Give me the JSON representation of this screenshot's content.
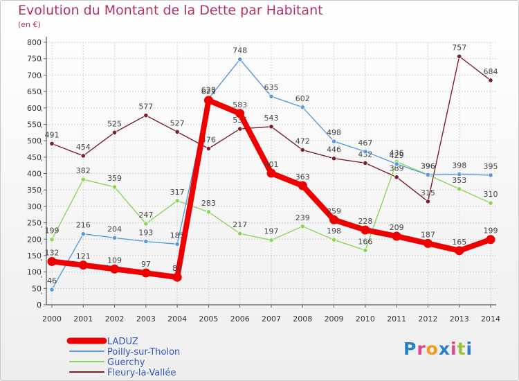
{
  "title": "Evolution du Montant de la Dette par Habitant",
  "unit": "(en €)",
  "logo": {
    "text": "Proxiti",
    "letter_colors": [
      "#2a7fc8",
      "#e0468c",
      "#f39a1e",
      "#2a7fc8",
      "#e0468c",
      "#9bc33c",
      "#2a7fc8"
    ]
  },
  "chart_data": {
    "type": "line",
    "x": [
      "2000",
      "2001",
      "2002",
      "2003",
      "2004",
      "2005",
      "2006",
      "2007",
      "2008",
      "2009",
      "2010",
      "2011",
      "2012",
      "2013",
      "2014"
    ],
    "ylim": [
      0,
      800
    ],
    "yticks": [
      0,
      50,
      100,
      150,
      200,
      250,
      300,
      350,
      400,
      450,
      500,
      550,
      600,
      650,
      700,
      750,
      800
    ],
    "grid": true,
    "legend_position": "bottom-left",
    "series": [
      {
        "name": "Fleury-la-Vallée",
        "color": "#7a1e2a",
        "width": 1.4,
        "marker": 3.2,
        "values": [
          491,
          454,
          525,
          577,
          527,
          476,
          536,
          543,
          472,
          446,
          432,
          389,
          315,
          757,
          684
        ],
        "labels": [
          "491",
          "454",
          "525",
          "577",
          "527",
          "476",
          "536",
          "543",
          "472",
          "446",
          "432",
          "389",
          "315",
          "757",
          "684"
        ]
      },
      {
        "name": "Guerchy",
        "color": "#8ad65a",
        "width": 1.4,
        "marker": 3.2,
        "values": [
          199,
          382,
          359,
          247,
          317,
          283,
          217,
          197,
          239,
          198,
          166,
          436,
          396,
          353,
          310
        ],
        "labels": [
          "199",
          "382",
          "359",
          "247",
          "317",
          "283",
          "217",
          "197",
          "239",
          "198",
          "166",
          "436",
          "396",
          "353",
          "310"
        ]
      },
      {
        "name": "Poilly-sur-Tholon",
        "color": "#5a9ad8",
        "width": 1.4,
        "marker": 3.2,
        "values": [
          46,
          216,
          204,
          193,
          185,
          628,
          748,
          635,
          602,
          498,
          467,
          429,
          396,
          398,
          395
        ],
        "labels": [
          "46",
          "216",
          "204",
          "193",
          "185",
          "628",
          "748",
          "635",
          "602",
          "498",
          "467",
          "429",
          "396",
          "398",
          "395"
        ]
      },
      {
        "name": "LADUZ",
        "color": "#ee0000",
        "width": 8,
        "marker": 6.5,
        "values": [
          132,
          121,
          109,
          97,
          84,
          623,
          583,
          401,
          363,
          259,
          228,
          209,
          187,
          165,
          199
        ],
        "labels": [
          "132",
          "121",
          "109",
          "97",
          "84",
          "623",
          "583",
          "401",
          "363",
          "259",
          "228",
          "209",
          "187",
          "165",
          "199"
        ]
      }
    ],
    "legend": [
      "LADUZ",
      "Poilly-sur-Tholon",
      "Guerchy",
      "Fleury-la-Vallée"
    ]
  }
}
